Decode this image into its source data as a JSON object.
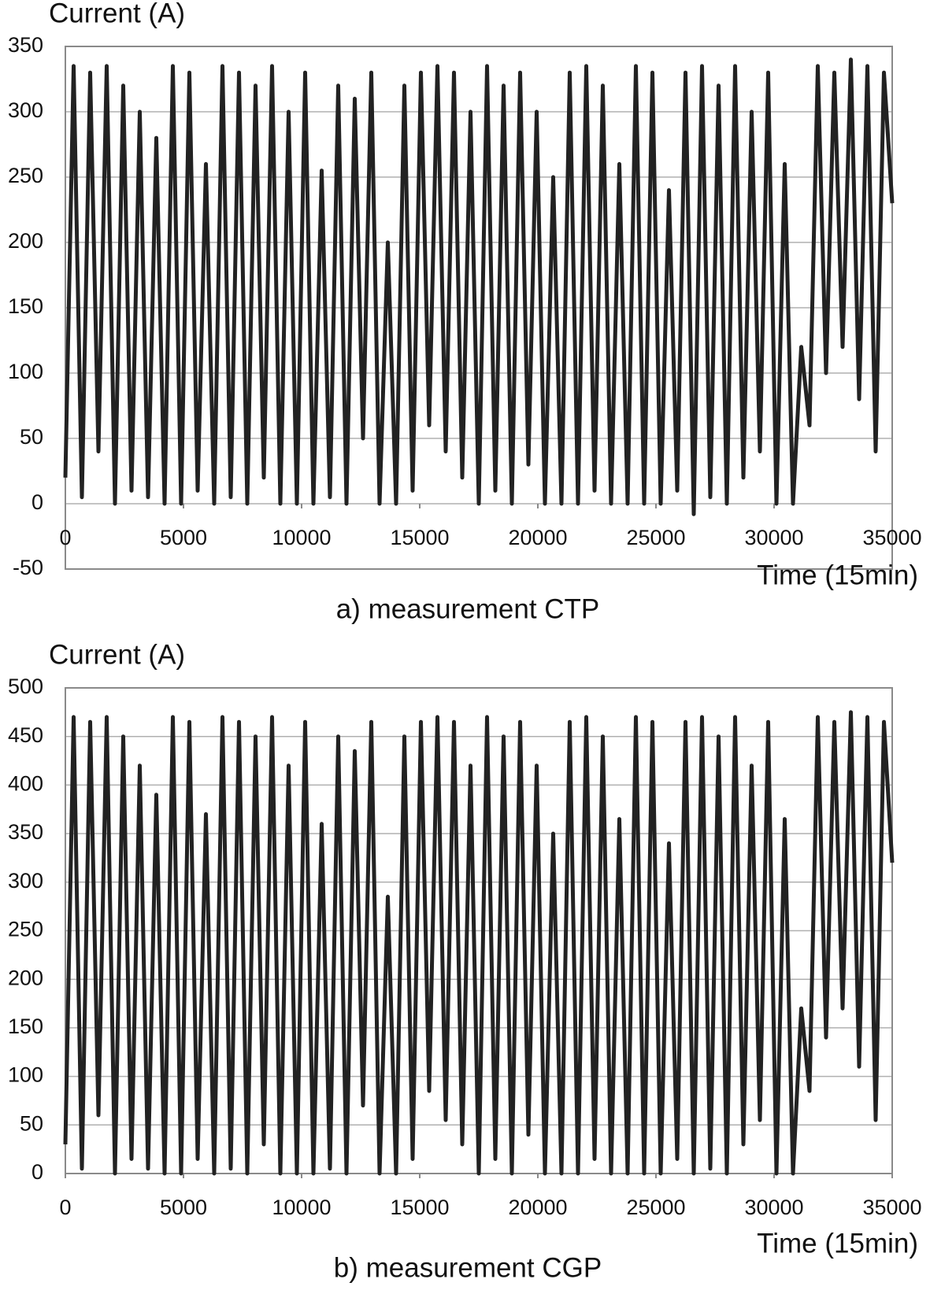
{
  "chart_data": [
    {
      "type": "line",
      "y_label": "Current (A)",
      "x_label": "Time (15min)",
      "caption": "a) measurement CTP",
      "xlim": [
        0,
        35000
      ],
      "xticks": [
        0,
        5000,
        10000,
        15000,
        20000,
        25000,
        30000,
        35000
      ],
      "ylim": [
        -50,
        350
      ],
      "yticks": [
        -50,
        0,
        50,
        100,
        150,
        200,
        250,
        300,
        350
      ],
      "grid": true,
      "x": [
        0,
        350,
        700,
        1050,
        1400,
        1750,
        2100,
        2450,
        2800,
        3150,
        3500,
        3850,
        4200,
        4550,
        4900,
        5250,
        5600,
        5950,
        6300,
        6650,
        7000,
        7350,
        7700,
        8050,
        8400,
        8750,
        9100,
        9450,
        9800,
        10150,
        10500,
        10850,
        11200,
        11550,
        11900,
        12250,
        12600,
        12950,
        13300,
        13650,
        14000,
        14350,
        14700,
        15050,
        15400,
        15750,
        16100,
        16450,
        16800,
        17150,
        17500,
        17850,
        18200,
        18550,
        18900,
        19250,
        19600,
        19950,
        20300,
        20650,
        21000,
        21350,
        21700,
        22050,
        22400,
        22750,
        23100,
        23450,
        23800,
        24150,
        24500,
        24850,
        25200,
        25550,
        25900,
        26250,
        26600,
        26950,
        27300,
        27650,
        28000,
        28350,
        28700,
        29050,
        29400,
        29750,
        30100,
        30450,
        30800,
        31150,
        31500,
        31850,
        32200,
        32550,
        32900,
        33250,
        33600,
        33950,
        34300,
        34650,
        35000
      ],
      "series": [
        {
          "color": "#222222",
          "values": [
            20,
            335,
            5,
            330,
            40,
            335,
            0,
            320,
            10,
            300,
            5,
            280,
            0,
            335,
            0,
            330,
            10,
            260,
            0,
            335,
            5,
            330,
            0,
            320,
            20,
            335,
            0,
            300,
            0,
            330,
            0,
            255,
            5,
            320,
            0,
            310,
            50,
            330,
            0,
            200,
            0,
            320,
            10,
            330,
            60,
            335,
            40,
            330,
            20,
            300,
            0,
            335,
            10,
            320,
            0,
            330,
            30,
            300,
            0,
            250,
            0,
            330,
            0,
            335,
            10,
            320,
            0,
            260,
            0,
            335,
            0,
            330,
            0,
            240,
            10,
            330,
            -8,
            335,
            5,
            320,
            0,
            335,
            20,
            300,
            40,
            330,
            0,
            260,
            0,
            120,
            60,
            335,
            100,
            330,
            120,
            340,
            80,
            335,
            40,
            330,
            230
          ]
        }
      ]
    },
    {
      "type": "line",
      "y_label": "Current (A)",
      "x_label": "Time (15min)",
      "caption": "b) measurement CGP",
      "xlim": [
        0,
        35000
      ],
      "xticks": [
        0,
        5000,
        10000,
        15000,
        20000,
        25000,
        30000,
        35000
      ],
      "ylim": [
        0,
        500
      ],
      "yticks": [
        0,
        50,
        100,
        150,
        200,
        250,
        300,
        350,
        400,
        450,
        500
      ],
      "grid": true,
      "x": [
        0,
        350,
        700,
        1050,
        1400,
        1750,
        2100,
        2450,
        2800,
        3150,
        3500,
        3850,
        4200,
        4550,
        4900,
        5250,
        5600,
        5950,
        6300,
        6650,
        7000,
        7350,
        7700,
        8050,
        8400,
        8750,
        9100,
        9450,
        9800,
        10150,
        10500,
        10850,
        11200,
        11550,
        11900,
        12250,
        12600,
        12950,
        13300,
        13650,
        14000,
        14350,
        14700,
        15050,
        15400,
        15750,
        16100,
        16450,
        16800,
        17150,
        17500,
        17850,
        18200,
        18550,
        18900,
        19250,
        19600,
        19950,
        20300,
        20650,
        21000,
        21350,
        21700,
        22050,
        22400,
        22750,
        23100,
        23450,
        23800,
        24150,
        24500,
        24850,
        25200,
        25550,
        25900,
        26250,
        26600,
        26950,
        27300,
        27650,
        28000,
        28350,
        28700,
        29050,
        29400,
        29750,
        30100,
        30450,
        30800,
        31150,
        31500,
        31850,
        32200,
        32550,
        32900,
        33250,
        33600,
        33950,
        34300,
        34650,
        35000
      ],
      "series": [
        {
          "color": "#222222",
          "values": [
            30,
            470,
            5,
            465,
            60,
            470,
            0,
            450,
            15,
            420,
            5,
            390,
            0,
            470,
            0,
            465,
            15,
            370,
            0,
            470,
            5,
            465,
            0,
            450,
            30,
            470,
            0,
            420,
            0,
            465,
            0,
            360,
            5,
            450,
            0,
            435,
            70,
            465,
            0,
            285,
            0,
            450,
            15,
            465,
            85,
            470,
            55,
            465,
            30,
            420,
            0,
            470,
            15,
            450,
            0,
            465,
            40,
            420,
            0,
            350,
            0,
            465,
            0,
            470,
            15,
            450,
            0,
            365,
            0,
            470,
            0,
            465,
            0,
            340,
            15,
            465,
            0,
            470,
            5,
            450,
            0,
            470,
            30,
            420,
            55,
            465,
            0,
            365,
            0,
            170,
            85,
            470,
            140,
            465,
            170,
            475,
            110,
            470,
            55,
            465,
            320
          ]
        }
      ]
    }
  ]
}
